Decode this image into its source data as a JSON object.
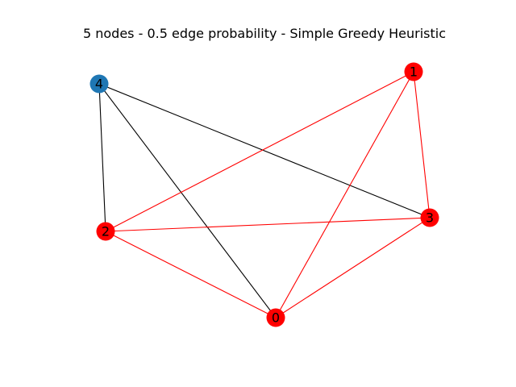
{
  "figure": {
    "title": "5 nodes - 0.5 edge probability - Simple Greedy Heuristic"
  },
  "colors": {
    "selected_node": "#ff0000",
    "unselected_node": "#1f77b4",
    "selected_edge": "#ff0000",
    "unselected_edge": "#000000",
    "label": "#000000"
  },
  "graph": {
    "nodes": [
      {
        "id": "0",
        "label": "0",
        "selected": true
      },
      {
        "id": "1",
        "label": "1",
        "selected": true
      },
      {
        "id": "2",
        "label": "2",
        "selected": true
      },
      {
        "id": "3",
        "label": "3",
        "selected": true
      },
      {
        "id": "4",
        "label": "4",
        "selected": false
      }
    ],
    "edges": [
      {
        "source": "4",
        "target": "2",
        "selected": false
      },
      {
        "source": "4",
        "target": "0",
        "selected": false
      },
      {
        "source": "4",
        "target": "3",
        "selected": false
      },
      {
        "source": "1",
        "target": "2",
        "selected": true
      },
      {
        "source": "1",
        "target": "0",
        "selected": true
      },
      {
        "source": "1",
        "target": "3",
        "selected": true
      },
      {
        "source": "2",
        "target": "3",
        "selected": true
      },
      {
        "source": "2",
        "target": "0",
        "selected": true
      },
      {
        "source": "0",
        "target": "3",
        "selected": true
      }
    ]
  }
}
